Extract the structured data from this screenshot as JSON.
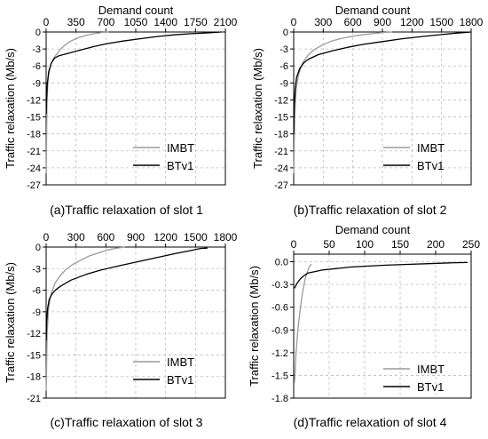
{
  "colors": {
    "imbt": "#9a9a9a",
    "btv1": "#000000",
    "grid": "#bdbdbd",
    "axis": "#000000"
  },
  "chart_data": [
    {
      "type": "line",
      "caption": "(a)Traffic relaxation of slot 1",
      "xlabel": "Demand count",
      "ylabel": "Traffic relaxation (Mb/s)",
      "x_axis_position": "top",
      "xlim": [
        0,
        2100
      ],
      "ylim": [
        -27,
        0
      ],
      "xticks": [
        0,
        350,
        700,
        1050,
        1400,
        1750,
        2100
      ],
      "xtick_labels": [
        "0",
        "350",
        "700",
        "1050",
        "1400",
        "1750",
        "2100"
      ],
      "yticks": [
        0,
        -3,
        -6,
        -9,
        -12,
        -15,
        -18,
        -21,
        -24,
        -27
      ],
      "ytick_labels": [
        "0",
        "-3",
        "-6",
        "-9",
        "-12",
        "-15",
        "-18",
        "-21",
        "-24",
        "-27"
      ],
      "grid": true,
      "legend_position": "bottom-right",
      "series": [
        {
          "name": "IMBT",
          "x": [
            1,
            10,
            25,
            50,
            80,
            120,
            170,
            230,
            300,
            380,
            470,
            560,
            650,
            730
          ],
          "y": [
            -25,
            -12,
            -8,
            -6,
            -4.8,
            -4,
            -3,
            -2.2,
            -1.5,
            -1,
            -0.6,
            -0.3,
            -0.1,
            0
          ]
        },
        {
          "name": "BTv1",
          "x": [
            1,
            5,
            15,
            30,
            60,
            100,
            150,
            250,
            400,
            550,
            700,
            900,
            1100,
            1300,
            1500,
            1700,
            1900,
            2050
          ],
          "y": [
            -14.5,
            -12,
            -9,
            -7,
            -5.5,
            -4.6,
            -4.2,
            -3.8,
            -3.2,
            -2.6,
            -2.1,
            -1.6,
            -1.2,
            -0.8,
            -0.5,
            -0.3,
            -0.15,
            0
          ]
        }
      ]
    },
    {
      "type": "line",
      "caption": "(b)Traffic relaxation of slot 2",
      "xlabel": "Demand count",
      "ylabel": "Traffic relaxation (Mb/s)",
      "x_axis_position": "top",
      "xlim": [
        0,
        1800
      ],
      "ylim": [
        -27,
        0
      ],
      "xticks": [
        0,
        300,
        600,
        900,
        1200,
        1500,
        1800
      ],
      "xtick_labels": [
        "0",
        "300",
        "600",
        "900",
        "1200",
        "1500",
        "1800"
      ],
      "yticks": [
        0,
        -3,
        -6,
        -9,
        -12,
        -15,
        -18,
        -21,
        -24,
        -27
      ],
      "ytick_labels": [
        "0",
        "-3",
        "-6",
        "-9",
        "-12",
        "-15",
        "-18",
        "-21",
        "-24",
        "-27"
      ],
      "grid": true,
      "legend_position": "bottom-right",
      "series": [
        {
          "name": "IMBT",
          "x": [
            1,
            10,
            25,
            50,
            90,
            140,
            200,
            280,
            370,
            470,
            580,
            690,
            800,
            900,
            1000
          ],
          "y": [
            -25,
            -15,
            -10,
            -7.5,
            -5.5,
            -4.2,
            -3.2,
            -2.4,
            -1.7,
            -1.2,
            -0.8,
            -0.5,
            -0.3,
            -0.1,
            0
          ]
        },
        {
          "name": "BTv1",
          "x": [
            1,
            5,
            15,
            30,
            60,
            100,
            150,
            250,
            400,
            550,
            700,
            900,
            1100,
            1300,
            1500,
            1650,
            1800
          ],
          "y": [
            -18,
            -13,
            -10,
            -8,
            -6.5,
            -5.5,
            -4.8,
            -4,
            -3.3,
            -2.7,
            -2.2,
            -1.7,
            -1.2,
            -0.8,
            -0.45,
            -0.2,
            0
          ]
        }
      ]
    },
    {
      "type": "line",
      "caption": "(c)Traffic relaxation of slot 3",
      "xlabel": "",
      "ylabel": "Traffic relaxation (Mb/s)",
      "x_axis_position": "top",
      "xlim": [
        0,
        1800
      ],
      "ylim": [
        -21,
        0
      ],
      "xticks": [
        0,
        300,
        600,
        900,
        1200,
        1500,
        1800
      ],
      "xtick_labels": [
        "0",
        "300",
        "600",
        "900",
        "1200",
        "1500",
        "1800"
      ],
      "yticks": [
        0,
        -3,
        -6,
        -9,
        -12,
        -15,
        -18,
        -21
      ],
      "ytick_labels": [
        "0",
        "-3",
        "-6",
        "-9",
        "-12",
        "-15",
        "-18",
        "-21"
      ],
      "grid": true,
      "legend_position": "bottom-right",
      "series": [
        {
          "name": "IMBT",
          "x": [
            1,
            10,
            25,
            50,
            90,
            140,
            200,
            270,
            350,
            440,
            530,
            620,
            710,
            790
          ],
          "y": [
            -20,
            -12,
            -8.5,
            -6.5,
            -5,
            -4,
            -3.1,
            -2.4,
            -1.8,
            -1.2,
            -0.8,
            -0.4,
            -0.15,
            0
          ]
        },
        {
          "name": "BTv1",
          "x": [
            1,
            5,
            15,
            30,
            60,
            100,
            150,
            250,
            400,
            550,
            700,
            900,
            1100,
            1300,
            1450,
            1550,
            1620
          ],
          "y": [
            -13,
            -10.5,
            -8.5,
            -7.3,
            -6.5,
            -5.9,
            -5.4,
            -4.6,
            -3.8,
            -3.2,
            -2.7,
            -2.1,
            -1.5,
            -0.9,
            -0.5,
            -0.2,
            -0.15
          ]
        }
      ]
    },
    {
      "type": "line",
      "caption": "(d)Traffic relaxation of slot 4",
      "xlabel": "Demand count",
      "ylabel": "Traffic relaxation (Mb/s)",
      "x_axis_position": "top",
      "xlim": [
        0,
        250
      ],
      "ylim": [
        -1.8,
        0.1
      ],
      "xticks": [
        0,
        50,
        100,
        150,
        200,
        250
      ],
      "xtick_labels": [
        "0",
        "50",
        "100",
        "150",
        "200",
        "250"
      ],
      "yticks": [
        0.0,
        -0.3,
        -0.6,
        -0.9,
        -1.2,
        -1.5,
        -1.8
      ],
      "ytick_labels": [
        "0.0",
        "-0.3",
        "-0.6",
        "-0.9",
        "-1.2",
        "-1.5",
        "-1.8"
      ],
      "grid": true,
      "legend_position": "bottom-right",
      "series": [
        {
          "name": "IMBT",
          "x": [
            1,
            2,
            3,
            5,
            7,
            9,
            11,
            13,
            15,
            17,
            19,
            21,
            23,
            25
          ],
          "y": [
            -1.6,
            -1.45,
            -1.25,
            -1.0,
            -0.8,
            -0.65,
            -0.5,
            -0.38,
            -0.28,
            -0.2,
            -0.14,
            -0.09,
            -0.05,
            -0.03
          ]
        },
        {
          "name": "BTv1",
          "x": [
            1,
            5,
            10,
            15,
            20,
            30,
            40,
            60,
            80,
            100,
            130,
            160,
            190,
            220,
            245
          ],
          "y": [
            -0.35,
            -0.28,
            -0.22,
            -0.18,
            -0.15,
            -0.13,
            -0.11,
            -0.09,
            -0.07,
            -0.06,
            -0.045,
            -0.035,
            -0.025,
            -0.015,
            -0.01
          ]
        }
      ]
    }
  ]
}
